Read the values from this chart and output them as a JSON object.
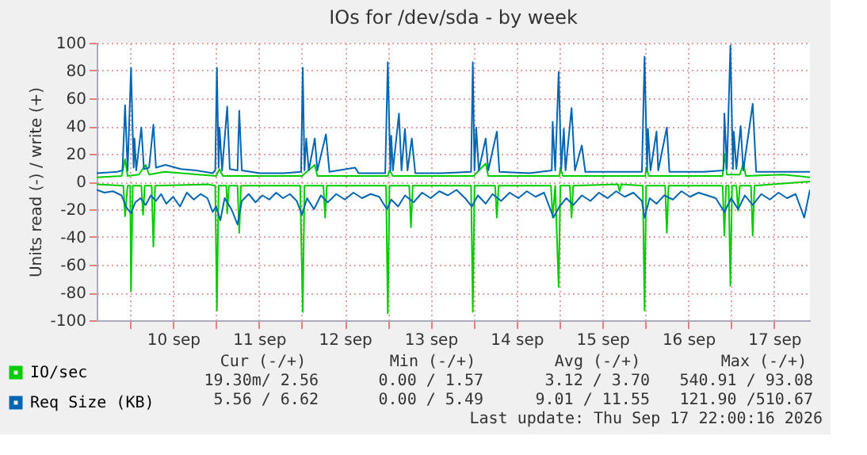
{
  "chart_data": {
    "type": "line",
    "title": "IOs for /dev/sda - by week",
    "ylabel": "Units read (-) / write (+)",
    "xlim": [
      "2026-09-09T14:38",
      "2026-09-17T22:00"
    ],
    "xticks": [
      {
        "value": "2026-09-10T00:00",
        "label": null
      },
      {
        "value": "2026-09-10T12:00",
        "label": "10 sep"
      },
      {
        "value": "2026-09-11T00:00",
        "label": null
      },
      {
        "value": "2026-09-11T12:00",
        "label": "11 sep"
      },
      {
        "value": "2026-09-12T00:00",
        "label": null
      },
      {
        "value": "2026-09-12T12:00",
        "label": "12 sep"
      },
      {
        "value": "2026-09-13T00:00",
        "label": null
      },
      {
        "value": "2026-09-13T12:00",
        "label": "13 sep"
      },
      {
        "value": "2026-09-14T00:00",
        "label": null
      },
      {
        "value": "2026-09-14T12:00",
        "label": "14 sep"
      },
      {
        "value": "2026-09-15T00:00",
        "label": null
      },
      {
        "value": "2026-09-15T12:00",
        "label": "15 sep"
      },
      {
        "value": "2026-09-16T00:00",
        "label": null
      },
      {
        "value": "2026-09-16T12:00",
        "label": "16 sep"
      },
      {
        "value": "2026-09-17T00:00",
        "label": null
      },
      {
        "value": "2026-09-17T12:00",
        "label": "17 sep"
      }
    ],
    "ylim": [
      -100,
      100
    ],
    "yticks": [
      -100,
      -80,
      -60,
      -40,
      -20,
      0,
      20,
      40,
      60,
      80,
      100
    ],
    "grid": true,
    "legend": "bottom left",
    "series": [
      {
        "name": "IO/sec",
        "color": "#00cc00",
        "x": [
          "2026-09-09T14:38",
          "2026-09-09T21:36",
          "2026-09-09T22:34",
          "2026-09-09T23:17",
          "2026-09-10T02:24",
          "2026-09-10T04:19",
          "2026-09-10T05:17",
          "2026-09-10T09:36",
          "2026-09-10T14:24",
          "2026-09-11T00:00",
          "2026-09-11T00:58",
          "2026-09-11T01:55",
          "2026-09-11T12:00",
          "2026-09-12T00:00",
          "2026-09-12T03:36",
          "2026-09-12T04:19",
          "2026-09-12T14:24",
          "2026-09-13T00:00",
          "2026-09-13T00:29",
          "2026-09-13T01:26",
          "2026-09-13T14:24",
          "2026-09-14T00:00",
          "2026-09-14T03:22",
          "2026-09-14T04:05",
          "2026-09-14T14:24",
          "2026-09-15T00:00",
          "2026-09-15T00:14",
          "2026-09-15T00:58",
          "2026-09-15T14:24",
          "2026-09-16T00:00",
          "2026-09-16T00:14",
          "2026-09-16T00:58",
          "2026-09-16T14:24",
          "2026-09-16T21:36",
          "2026-09-16T22:05",
          "2026-09-16T22:48",
          "2026-09-17T02:24",
          "2026-09-17T03:22",
          "2026-09-17T04:05",
          "2026-09-17T14:24",
          "2026-09-17T22:00"
        ],
        "values": [
          3,
          4,
          16,
          4,
          5,
          12,
          5,
          7,
          6,
          4,
          9,
          4,
          4,
          4,
          12,
          4,
          4,
          4,
          8,
          4,
          4,
          4,
          13,
          4,
          4,
          4,
          10,
          4,
          4,
          4,
          10,
          4,
          4,
          4,
          20,
          5,
          5,
          13,
          4,
          5,
          3
        ]
      },
      {
        "color": "#00cc00",
        "x": [
          "2026-09-09T14:38",
          "2026-09-09T22:05",
          "2026-09-09T22:34",
          "2026-09-09T23:17",
          "2026-09-10T00:00",
          "2026-09-10T00:14",
          "2026-09-10T00:43",
          "2026-09-10T03:07",
          "2026-09-10T03:36",
          "2026-09-10T04:05",
          "2026-09-10T06:00",
          "2026-09-10T06:29",
          "2026-09-10T06:58",
          "2026-09-10T21:36",
          "2026-09-10T23:46",
          "2026-09-11T00:14",
          "2026-09-11T00:43",
          "2026-09-11T02:53",
          "2026-09-11T03:07",
          "2026-09-11T03:36",
          "2026-09-11T06:00",
          "2026-09-11T06:29",
          "2026-09-11T06:58",
          "2026-09-11T23:31",
          "2026-09-12T00:14",
          "2026-09-12T00:43",
          "2026-09-12T06:00",
          "2026-09-12T06:29",
          "2026-09-12T06:58",
          "2026-09-12T23:31",
          "2026-09-13T00:00",
          "2026-09-13T00:29",
          "2026-09-13T06:00",
          "2026-09-13T06:29",
          "2026-09-13T06:58",
          "2026-09-13T23:17",
          "2026-09-13T23:46",
          "2026-09-14T00:14",
          "2026-09-14T06:00",
          "2026-09-14T06:29",
          "2026-09-14T06:58",
          "2026-09-14T21:36",
          "2026-09-14T22:05",
          "2026-09-14T22:48",
          "2026-09-14T23:46",
          "2026-09-15T00:14",
          "2026-09-15T02:53",
          "2026-09-15T03:22",
          "2026-09-15T03:50",
          "2026-09-15T16:19",
          "2026-09-15T16:48",
          "2026-09-15T17:17",
          "2026-09-15T23:17",
          "2026-09-15T23:46",
          "2026-09-16T00:14",
          "2026-09-16T05:31",
          "2026-09-16T06:00",
          "2026-09-16T06:29",
          "2026-09-16T21:36",
          "2026-09-16T22:05",
          "2026-09-16T22:34",
          "2026-09-16T23:17",
          "2026-09-16T23:46",
          "2026-09-17T00:14",
          "2026-09-17T01:26",
          "2026-09-17T01:55",
          "2026-09-17T02:24",
          "2026-09-17T05:31",
          "2026-09-17T06:00",
          "2026-09-17T06:29",
          "2026-09-17T22:00"
        ],
        "values": [
          -2,
          -3,
          -25,
          -3,
          -3,
          -79,
          -3,
          -3,
          -24,
          -3,
          -3,
          -47,
          -3,
          -2,
          -3,
          -93,
          -3,
          -3,
          -23,
          -3,
          -3,
          -37,
          -3,
          -3,
          -94,
          -3,
          -3,
          -26,
          -3,
          -3,
          -95,
          -3,
          -3,
          -33,
          -3,
          -3,
          -94,
          -3,
          -3,
          -26,
          -3,
          -3,
          -26,
          -3,
          -76,
          -3,
          -3,
          -26,
          -3,
          -2,
          -7,
          -2,
          -3,
          -93,
          -3,
          -3,
          -37,
          -3,
          -3,
          -39,
          -3,
          -3,
          -75,
          -3,
          -3,
          -21,
          -3,
          -3,
          -39,
          -3,
          0
        ]
      },
      {
        "name": "Req Size (KB)",
        "color": "#0066b3",
        "x": [
          "2026-09-09T14:38",
          "2026-09-09T20:24",
          "2026-09-09T21:50",
          "2026-09-09T22:34",
          "2026-09-09T23:17",
          "2026-09-10T00:14",
          "2026-09-10T00:58",
          "2026-09-10T01:12",
          "2026-09-10T01:41",
          "2026-09-10T03:07",
          "2026-09-10T03:50",
          "2026-09-10T05:17",
          "2026-09-10T06:29",
          "2026-09-10T07:12",
          "2026-09-10T09:50",
          "2026-09-10T14:10",
          "2026-09-10T18:29",
          "2026-09-10T23:02",
          "2026-09-10T23:46",
          "2026-09-11T00:14",
          "2026-09-11T00:43",
          "2026-09-11T00:58",
          "2026-09-11T01:41",
          "2026-09-11T03:07",
          "2026-09-11T03:50",
          "2026-09-11T06:00",
          "2026-09-11T06:29",
          "2026-09-11T07:12",
          "2026-09-11T12:14",
          "2026-09-11T18:58",
          "2026-09-11T23:46",
          "2026-09-12T00:14",
          "2026-09-12T00:43",
          "2026-09-12T01:12",
          "2026-09-12T01:55",
          "2026-09-12T03:36",
          "2026-09-12T04:19",
          "2026-09-12T06:43",
          "2026-09-12T07:41",
          "2026-09-12T14:53",
          "2026-09-12T15:50",
          "2026-09-12T23:17",
          "2026-09-13T00:00",
          "2026-09-13T00:43",
          "2026-09-13T00:58",
          "2026-09-13T01:26",
          "2026-09-13T03:07",
          "2026-09-13T03:50",
          "2026-09-13T04:48",
          "2026-09-13T05:31",
          "2026-09-13T06:43",
          "2026-09-13T07:41",
          "2026-09-13T15:07",
          "2026-09-13T23:17",
          "2026-09-13T23:46",
          "2026-09-14T00:14",
          "2026-09-14T00:43",
          "2026-09-14T01:26",
          "2026-09-14T03:22",
          "2026-09-14T04:05",
          "2026-09-14T06:29",
          "2026-09-14T07:12",
          "2026-09-14T15:36",
          "2026-09-14T21:50",
          "2026-09-14T22:05",
          "2026-09-14T22:48",
          "2026-09-14T23:46",
          "2026-09-15T00:29",
          "2026-09-15T01:12",
          "2026-09-15T01:41",
          "2026-09-15T03:22",
          "2026-09-15T04:19",
          "2026-09-15T06:14",
          "2026-09-15T07:12",
          "2026-09-15T15:50",
          "2026-09-15T23:02",
          "2026-09-15T23:46",
          "2026-09-16T00:29",
          "2026-09-16T00:43",
          "2026-09-16T01:26",
          "2026-09-16T03:07",
          "2026-09-16T03:36",
          "2026-09-16T06:00",
          "2026-09-16T06:43",
          "2026-09-16T16:19",
          "2026-09-16T21:50",
          "2026-09-16T22:05",
          "2026-09-16T22:48",
          "2026-09-16T23:46",
          "2026-09-17T00:29",
          "2026-09-17T00:43",
          "2026-09-17T01:26",
          "2026-09-17T02:38",
          "2026-09-17T03:22",
          "2026-09-17T06:00",
          "2026-09-17T06:58",
          "2026-09-17T14:24",
          "2026-09-17T22:00"
        ],
        "values": [
          6,
          7,
          8,
          55,
          8,
          82,
          10,
          31,
          8,
          39,
          9,
          10,
          41,
          10,
          12,
          9,
          8,
          6,
          8,
          82,
          10,
          39,
          8,
          54,
          9,
          8,
          51,
          8,
          6,
          6,
          7,
          82,
          8,
          31,
          8,
          31,
          8,
          34,
          7,
          10,
          6,
          6,
          86,
          8,
          33,
          8,
          49,
          8,
          38,
          8,
          31,
          6,
          6,
          7,
          86,
          8,
          39,
          8,
          31,
          8,
          36,
          7,
          6,
          8,
          43,
          8,
          79,
          9,
          38,
          8,
          53,
          8,
          26,
          7,
          7,
          7,
          90,
          8,
          38,
          8,
          36,
          8,
          39,
          7,
          7,
          8,
          49,
          9,
          98,
          9,
          36,
          9,
          40,
          8,
          56,
          7,
          7,
          7
        ]
      },
      {
        "color": "#0066b3",
        "x": [
          "2026-09-09T14:38",
          "2026-09-09T16:48",
          "2026-09-09T19:12",
          "2026-09-09T21:36",
          "2026-09-09T22:48",
          "2026-09-10T00:14",
          "2026-09-10T01:26",
          "2026-09-10T02:53",
          "2026-09-10T04:19",
          "2026-09-10T05:46",
          "2026-09-10T07:12",
          "2026-09-10T08:38",
          "2026-09-10T10:05",
          "2026-09-10T12:00",
          "2026-09-10T13:55",
          "2026-09-10T15:50",
          "2026-09-10T17:46",
          "2026-09-10T19:41",
          "2026-09-10T21:36",
          "2026-09-10T23:02",
          "2026-09-11T00:00",
          "2026-09-11T01:12",
          "2026-09-11T02:24",
          "2026-09-11T04:19",
          "2026-09-11T06:00",
          "2026-09-11T07:12",
          "2026-09-11T09:07",
          "2026-09-11T11:02",
          "2026-09-11T12:58",
          "2026-09-11T14:53",
          "2026-09-11T16:48",
          "2026-09-11T18:43",
          "2026-09-11T20:38",
          "2026-09-11T22:34",
          "2026-09-12T00:00",
          "2026-09-12T01:26",
          "2026-09-12T03:22",
          "2026-09-12T05:17",
          "2026-09-12T07:12",
          "2026-09-12T09:36",
          "2026-09-12T12:00",
          "2026-09-12T14:24",
          "2026-09-12T16:48",
          "2026-09-12T19:12",
          "2026-09-12T21:36",
          "2026-09-12T23:46",
          "2026-09-13T00:58",
          "2026-09-13T02:53",
          "2026-09-13T04:48",
          "2026-09-13T07:12",
          "2026-09-13T09:36",
          "2026-09-13T12:00",
          "2026-09-13T14:24",
          "2026-09-13T16:48",
          "2026-09-13T19:12",
          "2026-09-13T21:36",
          "2026-09-13T23:31",
          "2026-09-14T01:12",
          "2026-09-14T03:22",
          "2026-09-14T05:17",
          "2026-09-14T07:41",
          "2026-09-14T10:05",
          "2026-09-14T12:29",
          "2026-09-14T14:53",
          "2026-09-14T17:17",
          "2026-09-14T19:41",
          "2026-09-14T22:19",
          "2026-09-15T00:00",
          "2026-09-15T01:55",
          "2026-09-15T03:50",
          "2026-09-15T06:14",
          "2026-09-15T08:38",
          "2026-09-15T11:02",
          "2026-09-15T13:26",
          "2026-09-15T15:50",
          "2026-09-15T18:14",
          "2026-09-15T20:38",
          "2026-09-15T23:02",
          "2026-09-15T23:46",
          "2026-09-16T01:12",
          "2026-09-16T03:07",
          "2026-09-16T05:17",
          "2026-09-16T07:41",
          "2026-09-16T10:05",
          "2026-09-16T12:29",
          "2026-09-16T14:53",
          "2026-09-16T17:17",
          "2026-09-16T19:41",
          "2026-09-16T22:05",
          "2026-09-17T00:00",
          "2026-09-17T01:55",
          "2026-09-17T03:50",
          "2026-09-17T06:00",
          "2026-09-17T08:24",
          "2026-09-17T10:48",
          "2026-09-17T13:12",
          "2026-09-17T15:36",
          "2026-09-17T18:00",
          "2026-09-17T20:24",
          "2026-09-17T22:00"
        ],
        "values": [
          -6,
          -8,
          -7,
          -10,
          -18,
          -23,
          -15,
          -12,
          -17,
          -10,
          -14,
          -9,
          -16,
          -11,
          -18,
          -8,
          -13,
          -9,
          -12,
          -22,
          -18,
          -28,
          -12,
          -20,
          -31,
          -14,
          -9,
          -15,
          -10,
          -13,
          -8,
          -12,
          -9,
          -14,
          -24,
          -12,
          -20,
          -10,
          -15,
          -9,
          -13,
          -8,
          -12,
          -9,
          -11,
          -20,
          -13,
          -18,
          -10,
          -15,
          -8,
          -12,
          -7,
          -10,
          -6,
          -12,
          -18,
          -10,
          -16,
          -9,
          -14,
          -8,
          -12,
          -7,
          -11,
          -8,
          -26,
          -18,
          -12,
          -17,
          -10,
          -14,
          -8,
          -12,
          -7,
          -11,
          -8,
          -14,
          -26,
          -12,
          -16,
          -10,
          -13,
          -7,
          -11,
          -8,
          -10,
          -12,
          -22,
          -12,
          -20,
          -10,
          -17,
          -9,
          -13,
          -8,
          -12,
          -9,
          -26,
          -6
        ]
      }
    ],
    "annotations": [
      "Cur (-/+)",
      "Min (-/+)",
      "Avg (-/+)",
      "Max (-/+)",
      "19.30m/ 2.56",
      "0.00 / 1.57",
      "3.12 / 3.70",
      "540.91 / 93.08",
      "5.56 / 6.62",
      "0.00 / 5.49",
      "9.01 / 11.55",
      "121.90 /510.67",
      "Last update: Thu Sep 17 22:00:16 2026"
    ]
  }
}
